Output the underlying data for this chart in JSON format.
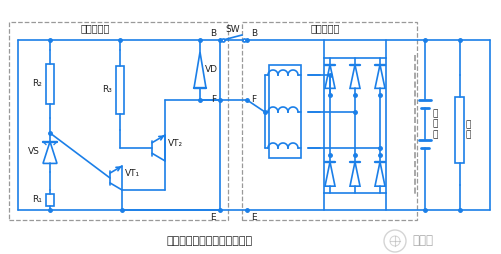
{
  "bg": "#ffffff",
  "lc": "#1B7FE8",
  "dc": "#999999",
  "tc": "#222222",
  "title": "外搭铁型电子调节器基本电路",
  "box1": "电子调节器",
  "box2": "交流发电机",
  "bat_label": "蓄\n电\n池",
  "load_label": "负\n载",
  "wm_text": "日月辰",
  "fw": 5.01,
  "fh": 2.54,
  "dpi": 100
}
